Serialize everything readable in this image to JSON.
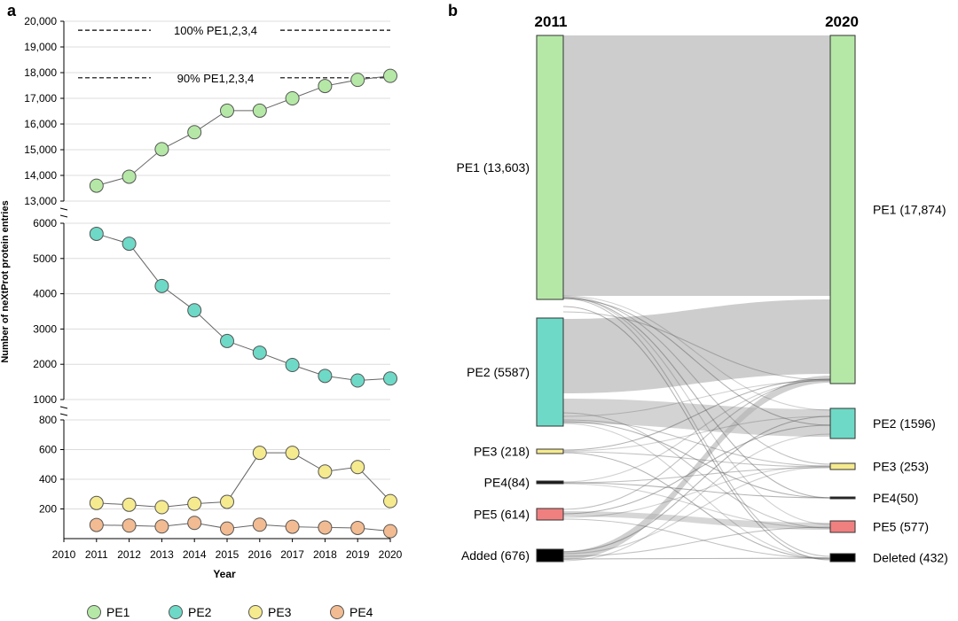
{
  "panel_a": {
    "label": "a",
    "chart_data": {
      "type": "line",
      "ylabel": "Number of neXtProt protein entries",
      "xlabel": "Year",
      "x_ticks": [
        "2010",
        "2011",
        "2012",
        "2013",
        "2014",
        "2015",
        "2016",
        "2017",
        "2018",
        "2019",
        "2020"
      ],
      "segments": {
        "top": {
          "ylim": [
            13000,
            20000
          ],
          "ticks": [
            "13,000",
            "14,000",
            "15,000",
            "16,000",
            "17,000",
            "18,000",
            "19,000",
            "20,000"
          ],
          "tick_values": [
            13000,
            14000,
            15000,
            16000,
            17000,
            18000,
            19000,
            20000
          ]
        },
        "middle": {
          "ylim": [
            1000,
            6000
          ],
          "ticks": [
            "1000",
            "2000",
            "3000",
            "4000",
            "5000",
            "6000"
          ],
          "tick_values": [
            1000,
            2000,
            3000,
            4000,
            5000,
            6000
          ]
        },
        "bottom": {
          "ylim": [
            0,
            800
          ],
          "ticks": [
            "200",
            "400",
            "600",
            "800"
          ],
          "tick_values": [
            200,
            400,
            600,
            800
          ]
        }
      },
      "x": [
        2011,
        2012,
        2013,
        2014,
        2015,
        2016,
        2017,
        2018,
        2019,
        2020
      ],
      "series": [
        {
          "name": "PE1",
          "segment": "top",
          "color": "#b5e8a6",
          "values": [
            13600,
            13950,
            15020,
            15680,
            16520,
            16520,
            17000,
            17480,
            17720,
            17874
          ]
        },
        {
          "name": "PE2",
          "segment": "middle",
          "color": "#6ed9c6",
          "values": [
            5700,
            5420,
            4220,
            3530,
            2660,
            2330,
            1980,
            1670,
            1540,
            1596
          ]
        },
        {
          "name": "PE3",
          "segment": "bottom",
          "color": "#f5ea8e",
          "values": [
            240,
            228,
            212,
            235,
            248,
            578,
            578,
            452,
            482,
            253
          ]
        },
        {
          "name": "PE4",
          "segment": "bottom",
          "color": "#f2bb92",
          "values": [
            92,
            88,
            82,
            106,
            68,
            94,
            80,
            75,
            72,
            50
          ]
        }
      ],
      "reference_lines": [
        {
          "label": "100% PE1,2,3,4",
          "value": 19650
        },
        {
          "label": "90% PE1,2,3,4",
          "value": 17800
        }
      ],
      "legend": [
        "PE1",
        "PE2",
        "PE3",
        "PE4"
      ]
    }
  },
  "panel_b": {
    "label": "b",
    "chart_data": {
      "type": "sankey",
      "left_title": "2011",
      "right_title": "2020",
      "left_nodes": [
        {
          "id": "PE1",
          "label": "PE1 (13,603)",
          "value": 13603,
          "color": "#b5e8a6"
        },
        {
          "id": "PE2",
          "label": "PE2 (5587)",
          "value": 5587,
          "color": "#6ed9c6"
        },
        {
          "id": "PE3",
          "label": "PE3 (218)",
          "value": 218,
          "color": "#f5ea8e"
        },
        {
          "id": "PE4",
          "label": "PE4(84)",
          "value": 84,
          "color": "#1a1a1a"
        },
        {
          "id": "PE5",
          "label": "PE5 (614)",
          "value": 614,
          "color": "#f08080"
        },
        {
          "id": "Added",
          "label": "Added (676)",
          "value": 676,
          "color": "#000000"
        }
      ],
      "right_nodes": [
        {
          "id": "PE1",
          "label": "PE1 (17,874)",
          "value": 17874,
          "color": "#b5e8a6"
        },
        {
          "id": "PE2",
          "label": "PE2 (1596)",
          "value": 1596,
          "color": "#6ed9c6"
        },
        {
          "id": "PE3",
          "label": "PE3 (253)",
          "value": 253,
          "color": "#f5ea8e"
        },
        {
          "id": "PE4",
          "label": "PE4(50)",
          "value": 50,
          "color": "#1a1a1a"
        },
        {
          "id": "PE5",
          "label": "PE5 (577)",
          "value": 577,
          "color": "#f08080"
        },
        {
          "id": "Deleted",
          "label": "Deleted (432)",
          "value": 432,
          "color": "#000000"
        }
      ]
    }
  }
}
